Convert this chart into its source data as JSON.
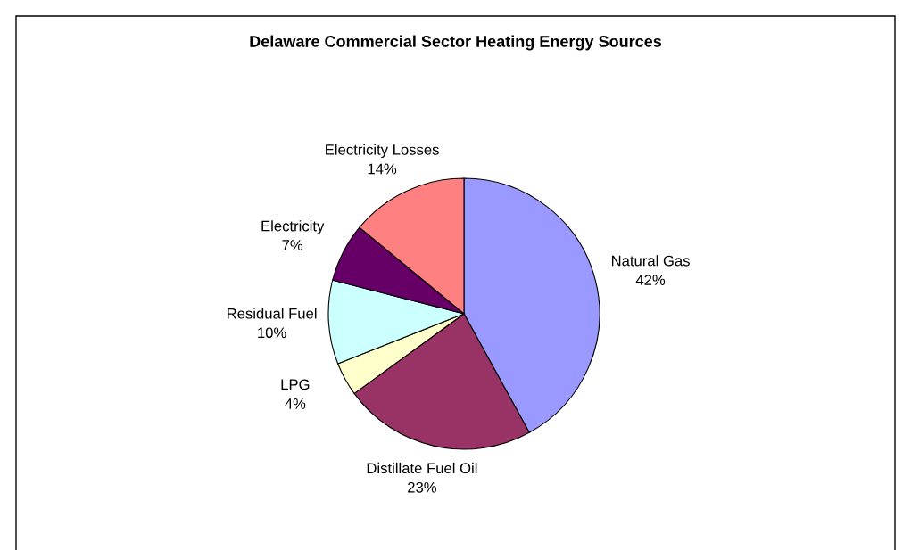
{
  "chart_data": {
    "type": "pie",
    "title": "Delaware Commercial Sector Heating Energy Sources",
    "categories": [
      "Natural Gas",
      "Distillate Fuel Oil",
      "LPG",
      "Residual Fuel",
      "Electricity",
      "Electricity Losses"
    ],
    "values": [
      42,
      23,
      4,
      10,
      7,
      14
    ],
    "value_labels": [
      "42%",
      "23%",
      "4%",
      "10%",
      "7%",
      "14%"
    ],
    "colors": [
      "#9999ff",
      "#993366",
      "#ffffcc",
      "#ccffff",
      "#660066",
      "#ff8080"
    ],
    "legend": false
  }
}
